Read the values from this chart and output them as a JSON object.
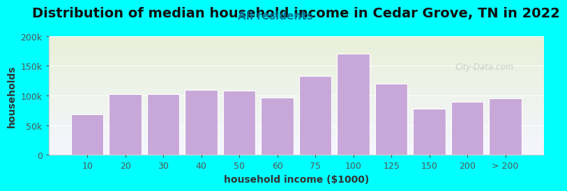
{
  "title": "Distribution of median household income in Cedar Grove, TN in 2022",
  "subtitle": "All residents",
  "xlabel": "household income ($1000)",
  "ylabel": "households",
  "background_color": "#00FFFF",
  "plot_bg_top": "#e8f0d8",
  "plot_bg_bottom": "#f4f6ff",
  "bar_color": "#c8a8d8",
  "bar_edge_color": "#ffffff",
  "categories": [
    "10",
    "20",
    "30",
    "40",
    "50",
    "60",
    "75",
    "100",
    "125",
    "150",
    "200",
    "> 200"
  ],
  "values": [
    68000,
    103000,
    102000,
    110000,
    108000,
    97000,
    133000,
    170000,
    120000,
    78000,
    90000,
    95000
  ],
  "ylim": [
    0,
    200000
  ],
  "yticks": [
    0,
    50000,
    100000,
    150000,
    200000
  ],
  "ytick_labels": [
    "0",
    "50k",
    "100k",
    "150k",
    "200k"
  ],
  "title_fontsize": 14,
  "subtitle_fontsize": 11,
  "axis_label_fontsize": 10,
  "tick_fontsize": 9,
  "watermark_text": "City-Data.com"
}
